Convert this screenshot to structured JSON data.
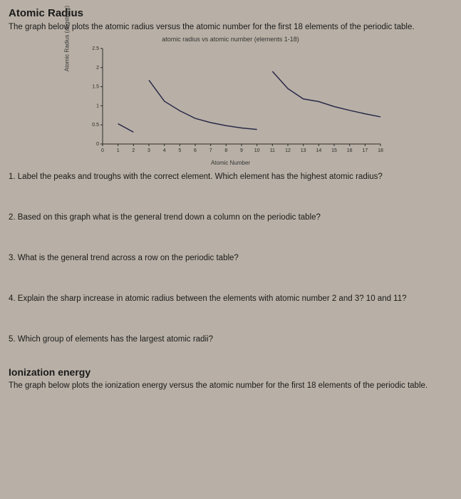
{
  "section1": {
    "title": "Atomic Radius",
    "subtitle": "The graph below plots the atomic radius versus the atomic number for the first 18 elements of the periodic table."
  },
  "chart": {
    "title": "atomic radius vs atomic number (elements 1-18)",
    "ylabel": "Atomic Radius (angstrom)",
    "xlabel": "Atomic Number",
    "type": "line",
    "xlim": [
      0,
      18
    ],
    "ylim": [
      0,
      2.5
    ],
    "yticks": [
      0,
      0.5,
      1,
      1.5,
      2,
      2.5
    ],
    "ytick_labels": [
      "0",
      "0.5",
      "1",
      "1.5",
      "2",
      "2.5"
    ],
    "xticks": [
      0,
      1,
      2,
      3,
      4,
      5,
      6,
      7,
      8,
      9,
      10,
      11,
      12,
      13,
      14,
      15,
      16,
      17,
      18
    ],
    "xtick_labels": [
      "0",
      "1",
      "2",
      "3",
      "4",
      "5",
      "6",
      "7",
      "8",
      "9",
      "10",
      "11",
      "12",
      "13",
      "14",
      "15",
      "16",
      "17",
      "18"
    ],
    "line_color": "#2a2a4a",
    "line_width": 1.5,
    "axis_color": "#2a2a2a",
    "tick_fontsize": 7,
    "label_fontsize": 8,
    "background_color": "transparent",
    "segments": [
      {
        "x": [
          1,
          2
        ],
        "y": [
          0.53,
          0.31
        ]
      },
      {
        "x": [
          3,
          4,
          5,
          6,
          7,
          8,
          9,
          10
        ],
        "y": [
          1.67,
          1.12,
          0.87,
          0.67,
          0.56,
          0.48,
          0.42,
          0.38
        ]
      },
      {
        "x": [
          11,
          12,
          13,
          14,
          15,
          16,
          17,
          18
        ],
        "y": [
          1.9,
          1.45,
          1.18,
          1.11,
          0.98,
          0.88,
          0.79,
          0.71
        ]
      }
    ]
  },
  "questions": {
    "q1": "1. Label the peaks and troughs with the correct element. Which element has the highest atomic radius?",
    "q2": "2. Based on this graph what is the general trend down a column on the periodic table?",
    "q3": "3. What is the general trend across a row on the periodic table?",
    "q4": "4. Explain the sharp increase in atomic radius between the elements with atomic number 2 and 3? 10 and 11?",
    "q5": "5. Which group of elements has the largest atomic radii?"
  },
  "section2": {
    "title": "Ionization energy",
    "subtitle": "The graph below plots the ionization energy versus the atomic number for the first 18 elements of the periodic table."
  }
}
